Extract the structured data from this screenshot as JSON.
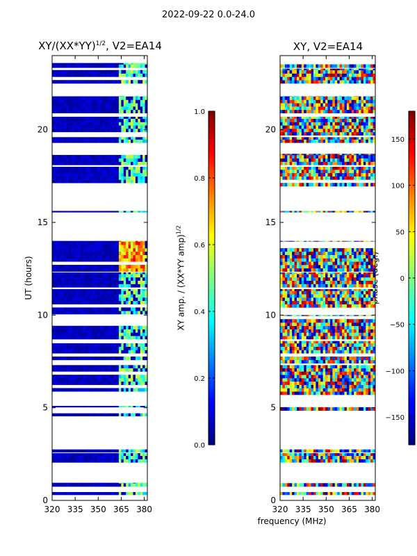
{
  "suptitle": "2022-09-22 0.0-24.0",
  "panels": {
    "amp": {
      "title": "XY/(XX*YY)1/2, V2=EA14",
      "title_main": "XY/(XX*YY)",
      "title_sup": "1/2",
      "title_rest": ", V2=EA14"
    },
    "phase": {
      "title": "XY, V2=EA14"
    }
  },
  "axes": {
    "ylabel": "UT (hours)",
    "xlabel": "frequency (MHz)",
    "amp_cbar_label": "XY amp. / (XX*YY amp)1/2",
    "amp_cbar_label_main": "XY amp. / (XX*YY amp)",
    "amp_cbar_label_sup": "1/2",
    "phase_cbar_label": "phase (deg.)"
  },
  "colors": {
    "jet": [
      "#00007f",
      "#0000ff",
      "#007fff",
      "#00ffff",
      "#7fff7f",
      "#ffff00",
      "#ff7f00",
      "#ff0000",
      "#7f0000"
    ],
    "background": "#ffffff"
  },
  "chart_data": [
    {
      "type": "heatmap",
      "title": "XY/(XX*YY)1/2, V2=EA14",
      "xlabel": "",
      "ylabel": "UT (hours)",
      "xlim": [
        320,
        382
      ],
      "ylim": [
        0,
        24
      ],
      "xticks": [
        320,
        335,
        350,
        365,
        380
      ],
      "yticks": [
        0,
        5,
        10,
        15,
        20
      ],
      "colorbar": {
        "label": "XY amp. / (XX*YY amp)1/2",
        "range": [
          0.0,
          1.0
        ],
        "ticks": [
          0.0,
          0.2,
          0.4,
          0.6,
          0.8,
          1.0
        ],
        "colormap": "jet"
      },
      "data_hour_bands": [
        [
          0.3,
          0.45
        ],
        [
          0.75,
          0.95
        ],
        [
          2.05,
          2.55
        ],
        [
          2.6,
          2.75
        ],
        [
          4.55,
          4.7
        ],
        [
          4.85,
          5.1
        ],
        [
          5.7,
          7.3
        ],
        [
          7.4,
          8.6
        ],
        [
          8.7,
          10.0
        ],
        [
          10.05,
          11.4
        ],
        [
          11.5,
          12.3
        ],
        [
          12.35,
          14.0
        ],
        [
          15.55,
          15.62
        ],
        [
          16.95,
          18.0
        ],
        [
          18.1,
          18.7
        ],
        [
          19.3,
          19.6
        ],
        [
          19.7,
          20.7
        ],
        [
          20.9,
          21.8
        ],
        [
          22.5,
          23.3
        ],
        [
          23.35,
          23.6
        ]
      ],
      "typical_value_below_362MHz": 0.05,
      "typical_value_above_362MHz": 0.4,
      "high_value_region": {
        "freq_MHz": [
          362,
          380
        ],
        "hours": [
          12.3,
          14.0
        ],
        "value": 0.8
      }
    },
    {
      "type": "heatmap",
      "title": "XY, V2=EA14",
      "xlabel": "frequency (MHz)",
      "ylabel": "",
      "xlim": [
        320,
        382
      ],
      "ylim": [
        0,
        24
      ],
      "xticks": [
        320,
        335,
        350,
        365,
        380
      ],
      "yticks": [
        0,
        5,
        10,
        15,
        20
      ],
      "colorbar": {
        "label": "phase (deg.)",
        "range": [
          -180,
          180
        ],
        "ticks": [
          -150,
          -100,
          -50,
          0,
          50,
          100,
          150
        ],
        "colormap": "jet"
      },
      "data_hour_bands": [
        [
          0.3,
          0.45
        ],
        [
          0.75,
          0.95
        ],
        [
          2.05,
          2.55
        ],
        [
          2.6,
          2.75
        ],
        [
          4.55,
          4.7
        ],
        [
          4.85,
          5.1
        ],
        [
          5.7,
          7.3
        ],
        [
          7.4,
          8.6
        ],
        [
          8.7,
          10.0
        ],
        [
          10.05,
          11.4
        ],
        [
          11.5,
          12.3
        ],
        [
          12.35,
          14.0
        ],
        [
          15.55,
          15.62
        ],
        [
          16.95,
          18.0
        ],
        [
          18.1,
          18.7
        ],
        [
          19.3,
          19.6
        ],
        [
          19.7,
          20.7
        ],
        [
          20.9,
          21.8
        ],
        [
          22.5,
          23.3
        ],
        [
          23.35,
          23.6
        ]
      ],
      "values": "phase varies across full range, noisy"
    }
  ]
}
